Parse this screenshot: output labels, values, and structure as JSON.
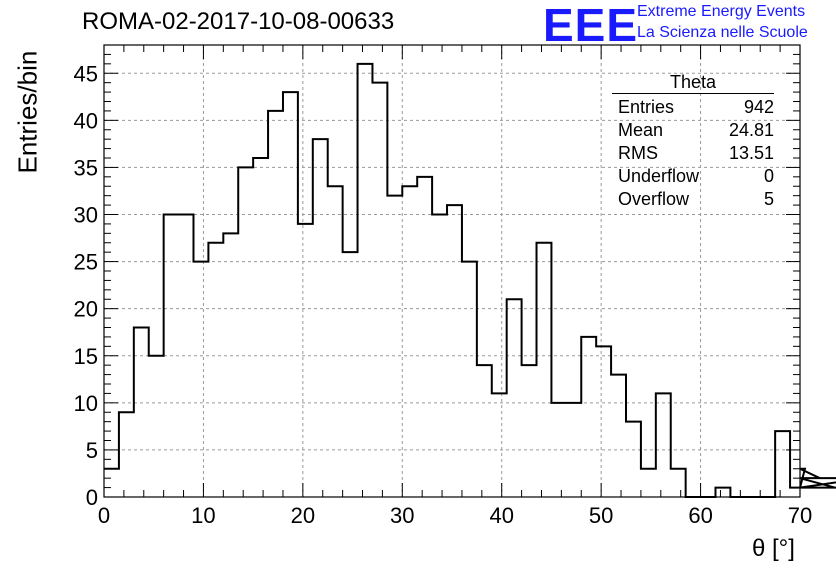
{
  "header": {
    "run_title": "ROMA-02-2017-10-08-00633"
  },
  "logo": {
    "mark": "EEE",
    "line1": "Extreme Energy Events",
    "line2": "La Scienza nelle Scuole",
    "color": "#1a1aff"
  },
  "stats_box": {
    "title": "Theta",
    "rows": [
      {
        "label": "Entries",
        "value": "942"
      },
      {
        "label": "Mean",
        "value": "24.81"
      },
      {
        "label": "RMS",
        "value": "13.51"
      },
      {
        "label": "Underflow",
        "value": "0"
      },
      {
        "label": "Overflow",
        "value": "5"
      }
    ]
  },
  "chart_data": {
    "type": "bar",
    "histogram": true,
    "xlabel": "θ [°]",
    "ylabel": "Entries/bin",
    "xlim": [
      0,
      70
    ],
    "ylim": [
      0,
      48
    ],
    "xticks": [
      0,
      10,
      20,
      30,
      40,
      50,
      60,
      70
    ],
    "yticks": [
      0,
      5,
      10,
      15,
      20,
      25,
      30,
      35,
      40,
      45
    ],
    "grid": true,
    "bin_width": 1.5,
    "bin_edges_start": 0,
    "values": [
      3,
      9,
      18,
      15,
      30,
      30,
      25,
      27,
      28,
      35,
      36,
      41,
      43,
      29,
      38,
      33,
      26,
      46,
      44,
      32,
      33,
      34,
      30,
      31,
      25,
      14,
      11,
      21,
      14,
      27,
      10,
      10,
      17,
      16,
      13,
      8,
      3,
      11,
      3,
      0,
      0,
      1,
      0,
      0,
      0,
      7,
      1,
      3,
      2,
      1,
      1,
      2
    ],
    "line_color": "#000000"
  }
}
